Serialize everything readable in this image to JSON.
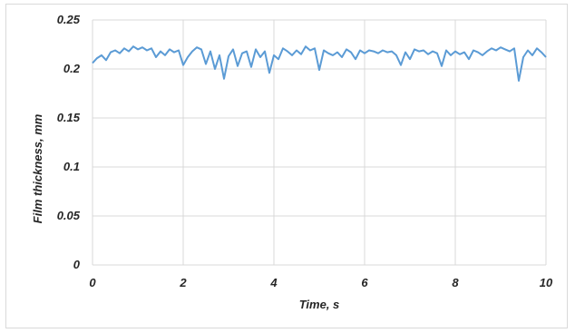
{
  "chart_data": {
    "type": "line",
    "title": "",
    "xlabel": "Time, s",
    "ylabel": "Film thickness, mm",
    "xlim": [
      0,
      10
    ],
    "ylim": [
      0,
      0.25
    ],
    "x_ticks": [
      "0",
      "2",
      "4",
      "6",
      "8",
      "10"
    ],
    "y_ticks": [
      "0",
      "0.05",
      "0.1",
      "0.15",
      "0.2",
      "0.25"
    ],
    "grid": true,
    "legend": "none",
    "line_color": "#5b9bd5",
    "series": [
      {
        "x": [
          0,
          0.1,
          0.2,
          0.3,
          0.4,
          0.5,
          0.6,
          0.7,
          0.8,
          0.9,
          1.0,
          1.1,
          1.2,
          1.3,
          1.4,
          1.5,
          1.6,
          1.7,
          1.8,
          1.9,
          2.0,
          2.1,
          2.2,
          2.3,
          2.4,
          2.5,
          2.6,
          2.7,
          2.8,
          2.9,
          3.0,
          3.1,
          3.2,
          3.3,
          3.4,
          3.5,
          3.6,
          3.7,
          3.8,
          3.9,
          4.0,
          4.1,
          4.2,
          4.3,
          4.4,
          4.5,
          4.6,
          4.7,
          4.8,
          4.9,
          5.0,
          5.1,
          5.2,
          5.3,
          5.4,
          5.5,
          5.6,
          5.7,
          5.8,
          5.9,
          6.0,
          6.1,
          6.2,
          6.3,
          6.4,
          6.5,
          6.6,
          6.7,
          6.8,
          6.9,
          7.0,
          7.1,
          7.2,
          7.3,
          7.4,
          7.5,
          7.6,
          7.7,
          7.8,
          7.9,
          8.0,
          8.1,
          8.2,
          8.3,
          8.4,
          8.5,
          8.6,
          8.7,
          8.8,
          8.9,
          9.0,
          9.1,
          9.2,
          9.3,
          9.4,
          9.5,
          9.6,
          9.7,
          9.8,
          9.9,
          10.0
        ],
        "y": [
          0.206,
          0.211,
          0.214,
          0.209,
          0.217,
          0.219,
          0.216,
          0.221,
          0.218,
          0.223,
          0.22,
          0.222,
          0.219,
          0.221,
          0.212,
          0.218,
          0.214,
          0.22,
          0.217,
          0.219,
          0.204,
          0.212,
          0.218,
          0.222,
          0.22,
          0.205,
          0.218,
          0.2,
          0.214,
          0.19,
          0.213,
          0.22,
          0.203,
          0.216,
          0.218,
          0.202,
          0.22,
          0.212,
          0.218,
          0.196,
          0.214,
          0.21,
          0.221,
          0.218,
          0.214,
          0.219,
          0.215,
          0.223,
          0.219,
          0.221,
          0.199,
          0.219,
          0.216,
          0.214,
          0.217,
          0.212,
          0.22,
          0.217,
          0.21,
          0.219,
          0.216,
          0.219,
          0.218,
          0.216,
          0.219,
          0.217,
          0.218,
          0.214,
          0.204,
          0.217,
          0.21,
          0.22,
          0.218,
          0.219,
          0.215,
          0.218,
          0.216,
          0.203,
          0.219,
          0.214,
          0.218,
          0.215,
          0.217,
          0.21,
          0.219,
          0.217,
          0.214,
          0.218,
          0.221,
          0.219,
          0.222,
          0.22,
          0.218,
          0.221,
          0.188,
          0.212,
          0.219,
          0.214,
          0.221,
          0.217,
          0.212
        ]
      }
    ]
  }
}
